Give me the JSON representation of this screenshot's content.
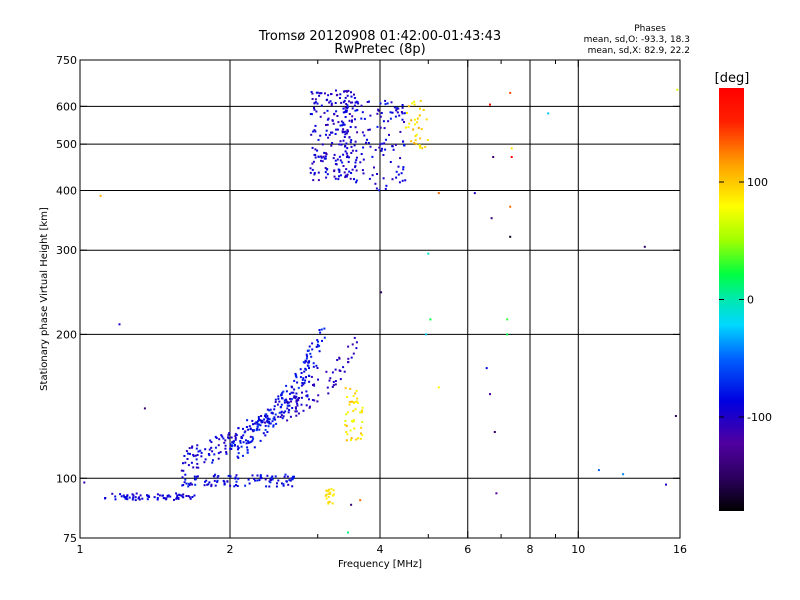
{
  "chart_data": {
    "type": "scatter",
    "title": "Tromsø 20120908 01:42:00-01:43:43",
    "subtitle": "RwPretec (8p)",
    "xlabel": "Frequency [MHz]",
    "ylabel": "Stationary phase Virtual Height [km]",
    "x_scale": "log",
    "y_scale": "log",
    "xlim": [
      1,
      16
    ],
    "ylim": [
      75,
      750
    ],
    "x_ticks": [
      1,
      2,
      4,
      6,
      8,
      10,
      16
    ],
    "y_ticks": [
      75,
      100,
      200,
      300,
      400,
      500,
      600,
      750
    ],
    "x_minor_ticks": [
      3,
      5,
      7,
      9
    ],
    "x_grid": [
      2,
      4,
      6,
      8,
      10
    ],
    "y_grid": [
      100,
      200,
      300,
      400,
      500,
      600
    ],
    "grid": true,
    "stats": {
      "title": "Phases",
      "line1": "mean, sd,O: -93.3, 18.3",
      "line2": "mean, sd,X:  82.9, 22.2"
    },
    "colorbar": {
      "label": "[deg]",
      "range": [
        -180,
        180
      ],
      "ticks": [
        100,
        0,
        -100
      ]
    },
    "clusters": [
      {
        "kind": "band",
        "f": [
          1.12,
          1.7
        ],
        "h": [
          90,
          93
        ],
        "n": 70,
        "phase": -95,
        "spread": 10
      },
      {
        "kind": "band",
        "f": [
          1.6,
          2.7
        ],
        "h": [
          96,
          102
        ],
        "n": 100,
        "phase": -90,
        "spread": 15
      },
      {
        "kind": "curve",
        "f": [
          1.6,
          3.0
        ],
        "h": [
          110,
          165
        ],
        "n": 170,
        "phase": -95,
        "spread": 14
      },
      {
        "kind": "curve",
        "f": [
          2.0,
          3.1
        ],
        "h": [
          115,
          205
        ],
        "n": 150,
        "phase": -85,
        "spread": 12
      },
      {
        "kind": "curve",
        "f": [
          2.6,
          3.6
        ],
        "h": [
          140,
          190
        ],
        "n": 60,
        "phase": -105,
        "spread": 8
      },
      {
        "kind": "blob",
        "f": [
          3.4,
          3.7
        ],
        "h": [
          120,
          155
        ],
        "n": 45,
        "phase": 90,
        "spread": 20
      },
      {
        "kind": "blob",
        "f": [
          2.9,
          3.6
        ],
        "h": [
          420,
          650
        ],
        "n": 200,
        "phase": -100,
        "spread": 15
      },
      {
        "kind": "blob",
        "f": [
          3.3,
          4.5
        ],
        "h": [
          400,
          620
        ],
        "n": 130,
        "phase": -95,
        "spread": 15
      },
      {
        "kind": "blob",
        "f": [
          4.5,
          5.0
        ],
        "h": [
          490,
          620
        ],
        "n": 35,
        "phase": 95,
        "spread": 20
      },
      {
        "kind": "blob",
        "f": [
          3.1,
          3.25
        ],
        "h": [
          88,
          95
        ],
        "n": 18,
        "phase": 90,
        "spread": 10
      }
    ],
    "isolated_points": [
      [
        1.02,
        98,
        -110
      ],
      [
        1.1,
        390,
        110
      ],
      [
        1.2,
        210,
        -100
      ],
      [
        1.35,
        140,
        -140
      ],
      [
        3.45,
        77,
        10
      ],
      [
        3.5,
        88,
        -140
      ],
      [
        3.65,
        90,
        130
      ],
      [
        4.02,
        245,
        -150
      ],
      [
        4.95,
        200,
        -30
      ],
      [
        5.05,
        215,
        20
      ],
      [
        5.25,
        155,
        80
      ],
      [
        5.25,
        395,
        130
      ],
      [
        5.0,
        295,
        -10
      ],
      [
        6.2,
        395,
        -100
      ],
      [
        6.55,
        170,
        -90
      ],
      [
        6.65,
        150,
        -120
      ],
      [
        6.7,
        350,
        -140
      ],
      [
        6.75,
        470,
        -140
      ],
      [
        6.8,
        125,
        -150
      ],
      [
        6.85,
        93,
        -120
      ],
      [
        7.2,
        200,
        20
      ],
      [
        7.2,
        215,
        30
      ],
      [
        7.3,
        320,
        -170
      ],
      [
        7.3,
        370,
        130
      ],
      [
        7.35,
        490,
        90
      ],
      [
        7.3,
        640,
        140
      ],
      [
        7.35,
        470,
        180
      ],
      [
        8.7,
        580,
        -30
      ],
      [
        6.65,
        605,
        175
      ],
      [
        11.0,
        104,
        -60
      ],
      [
        12.3,
        102,
        -50
      ],
      [
        13.6,
        305,
        -150
      ],
      [
        15.0,
        97,
        -100
      ],
      [
        15.7,
        135,
        -150
      ],
      [
        15.8,
        650,
        70
      ]
    ]
  }
}
